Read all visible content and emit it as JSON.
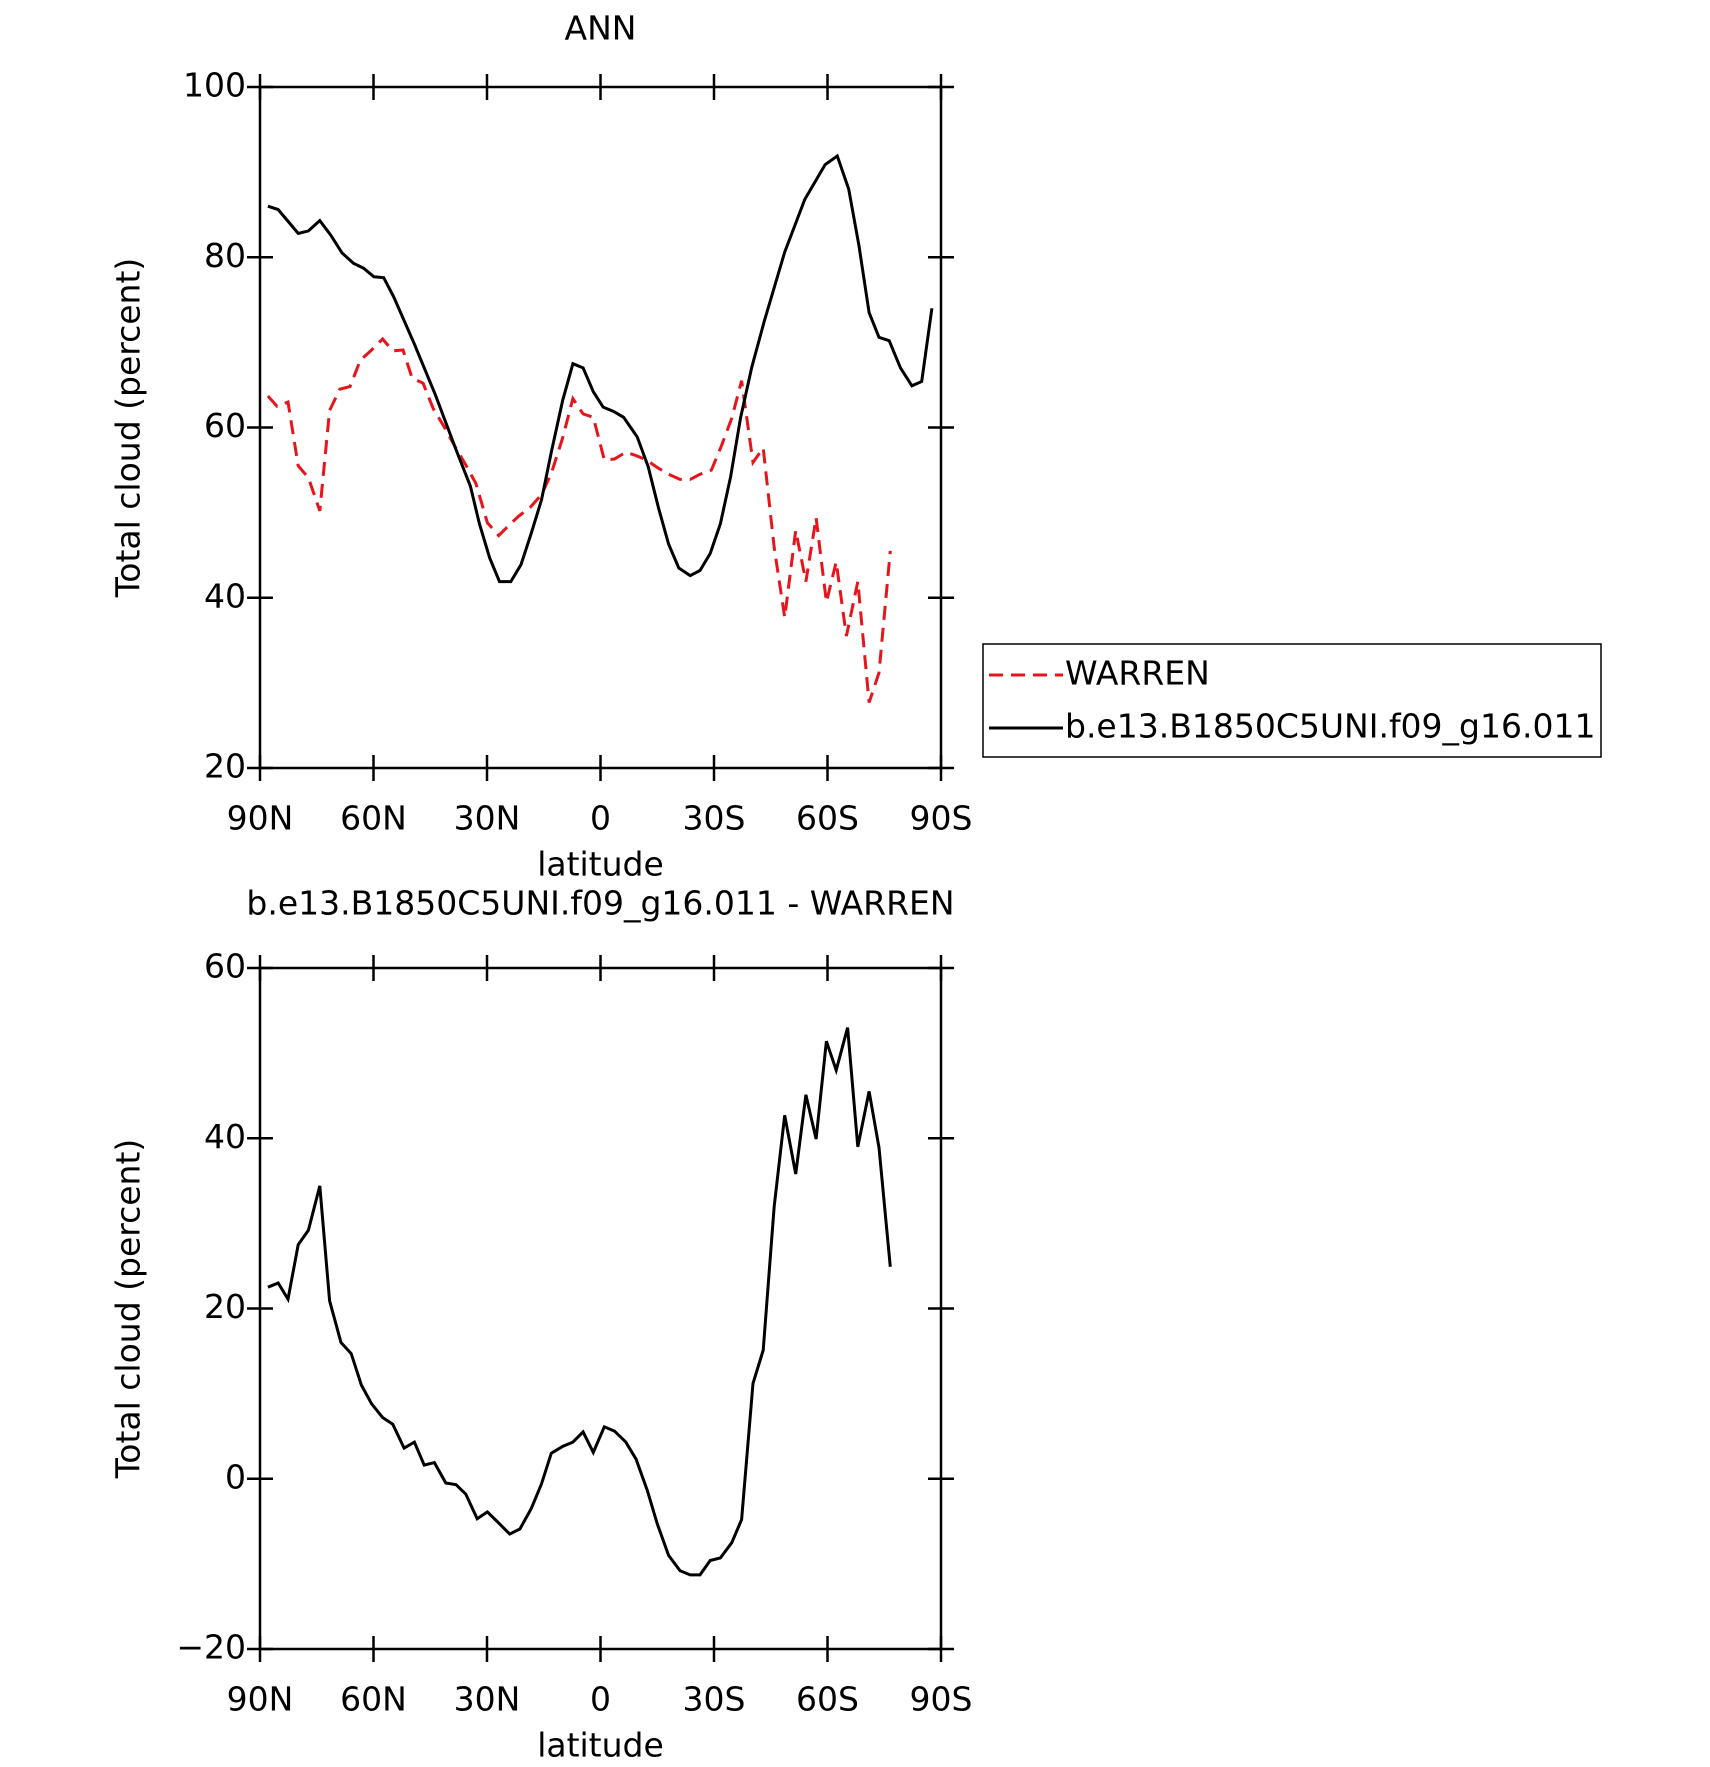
{
  "chart_data": [
    {
      "type": "line",
      "title": "ANN",
      "xlabel": "latitude",
      "ylabel": "Total cloud (percent)",
      "xlim": [
        90,
        -90
      ],
      "xticks": [
        {
          "value": 90,
          "label": "90N"
        },
        {
          "value": 60,
          "label": "60N"
        },
        {
          "value": 30,
          "label": "30N"
        },
        0,
        {
          "value": -30,
          "label": "30S"
        },
        {
          "value": -60,
          "label": "60S"
        },
        {
          "value": -90,
          "label": "90S"
        }
      ],
      "ylim": [
        20,
        100
      ],
      "yticks": [
        20,
        40,
        60,
        80,
        100
      ],
      "legend": "right",
      "series": [
        {
          "name": "WARREN",
          "color": "#e8141c",
          "style": "dashed",
          "x": [
            87.9,
            85.5,
            82.6,
            79.9,
            77.2,
            74.2,
            71.6,
            68.9,
            66.2,
            63.5,
            60.5,
            57.6,
            54.9,
            52.2,
            49.8,
            46.9,
            44.2,
            41.2,
            38.5,
            35.6,
            32.9,
            29.9,
            26.9,
            24.2,
            21.6,
            18.6,
            15.6,
            13.0,
            10.0,
            7.3,
            4.6,
            1.9,
            -1.0,
            -3.7,
            -6.7,
            -9.4,
            -12.1,
            -15.0,
            -18.0,
            -21.0,
            -23.7,
            -26.3,
            -29.3,
            -32.0,
            -34.7,
            -37.3,
            -40.3,
            -43.0,
            -45.9,
            -48.7,
            -51.6,
            -54.3,
            -57.0,
            -59.7,
            -62.3,
            -65.0,
            -68.0,
            -71.0,
            -73.6,
            -76.6
          ],
          "values": [
            63.7,
            62.5,
            63.0,
            55.5,
            54.1,
            50.2,
            62.0,
            64.5,
            64.8,
            67.9,
            69.1,
            70.4,
            69.0,
            69.1,
            65.8,
            65.2,
            62.2,
            60.0,
            57.8,
            55.6,
            53.4,
            48.8,
            47.3,
            48.5,
            49.6,
            50.6,
            52.1,
            54.6,
            58.8,
            63.4,
            61.6,
            61.2,
            56.2,
            56.3,
            57.1,
            56.7,
            56.2,
            55.3,
            54.5,
            53.9,
            53.9,
            54.5,
            55.0,
            57.9,
            61.1,
            65.5,
            55.9,
            57.6,
            45.9,
            37.7,
            47.9,
            41.9,
            49.4,
            39.5,
            44.2,
            35.5,
            41.9,
            27.7,
            31.2,
            45.5
          ]
        },
        {
          "name": "b.e13.B1850C5UNI.f09_g16.011",
          "color": "#000000",
          "style": "solid",
          "x": [
            87.9,
            85.2,
            79.9,
            77.2,
            74.2,
            71.3,
            68.3,
            65.3,
            62.6,
            59.9,
            57.3,
            54.6,
            49.2,
            43.6,
            38.2,
            34.4,
            32.0,
            29.3,
            26.7,
            23.7,
            21.0,
            18.3,
            15.6,
            13.0,
            10.0,
            7.3,
            4.6,
            1.9,
            -0.7,
            -3.4,
            -6.1,
            -9.7,
            -12.6,
            -15.3,
            -18.0,
            -20.7,
            -23.7,
            -26.3,
            -29.0,
            -31.7,
            -34.4,
            -37.0,
            -40.0,
            -43.3,
            -48.7,
            -54.0,
            -59.4,
            -62.6,
            -65.6,
            -68.3,
            -71.0,
            -73.6,
            -76.3,
            -79.3,
            -82.3,
            -84.9,
            -87.6
          ],
          "values": [
            86.0,
            85.6,
            82.8,
            83.1,
            84.3,
            82.6,
            80.5,
            79.3,
            78.7,
            77.7,
            77.6,
            75.3,
            69.8,
            63.8,
            57.4,
            53.1,
            48.7,
            44.7,
            41.9,
            41.9,
            43.9,
            47.6,
            51.5,
            57.1,
            63.2,
            67.5,
            67.0,
            64.2,
            62.4,
            61.9,
            61.2,
            58.9,
            55.4,
            50.6,
            46.3,
            43.5,
            42.6,
            43.2,
            45.2,
            48.7,
            54.2,
            61.1,
            67.1,
            72.5,
            80.6,
            86.8,
            90.9,
            91.9,
            88.0,
            81.4,
            73.5,
            70.6,
            70.2,
            67.0,
            64.9,
            65.4,
            74.0
          ]
        }
      ]
    },
    {
      "type": "line",
      "title": "b.e13.B1850C5UNI.f09_g16.011 - WARREN",
      "xlabel": "latitude",
      "ylabel": "Total cloud (percent)",
      "xlim": [
        90,
        -90
      ],
      "xticks": [
        {
          "value": 90,
          "label": "90N"
        },
        {
          "value": 60,
          "label": "60N"
        },
        {
          "value": 30,
          "label": "30N"
        },
        0,
        {
          "value": -30,
          "label": "30S"
        },
        {
          "value": -60,
          "label": "60S"
        },
        {
          "value": -90,
          "label": "90S"
        }
      ],
      "ylim": [
        -20,
        60
      ],
      "yticks": [
        {
          "value": -20,
          "label": "−20"
        },
        0,
        20,
        40,
        60
      ],
      "series": [
        {
          "color": "#000000",
          "style": "solid",
          "x": [
            87.9,
            85.2,
            82.6,
            79.9,
            77.2,
            74.2,
            71.6,
            68.6,
            65.9,
            63.2,
            60.5,
            57.6,
            54.9,
            51.9,
            49.2,
            46.6,
            43.9,
            40.9,
            38.2,
            35.6,
            32.6,
            29.9,
            26.9,
            24.0,
            21.3,
            18.3,
            15.6,
            13.0,
            10.0,
            7.3,
            4.6,
            1.9,
            -1.0,
            -3.7,
            -6.7,
            -9.4,
            -12.4,
            -15.0,
            -18.0,
            -21.0,
            -23.7,
            -26.3,
            -29.0,
            -31.7,
            -34.7,
            -37.3,
            -40.3,
            -43.0,
            -45.9,
            -48.7,
            -51.6,
            -54.3,
            -57.0,
            -59.7,
            -62.3,
            -65.3,
            -68.0,
            -71.0,
            -73.6,
            -76.6
          ],
          "values": [
            22.5,
            23.0,
            21.1,
            27.5,
            29.2,
            34.4,
            20.9,
            16.0,
            14.7,
            11.0,
            8.8,
            7.2,
            6.4,
            3.6,
            4.3,
            1.6,
            1.9,
            -0.5,
            -0.7,
            -1.8,
            -4.7,
            -3.9,
            -5.2,
            -6.5,
            -5.9,
            -3.5,
            -0.6,
            3.0,
            3.8,
            4.3,
            5.5,
            3.1,
            6.1,
            5.6,
            4.3,
            2.3,
            -1.4,
            -5.3,
            -9.0,
            -10.8,
            -11.3,
            -11.3,
            -9.6,
            -9.3,
            -7.5,
            -4.8,
            11.2,
            15.1,
            32.0,
            42.7,
            35.8,
            45.1,
            39.9,
            51.4,
            48.0,
            53.0,
            39.0,
            45.5,
            38.9,
            24.9
          ]
        }
      ]
    }
  ]
}
